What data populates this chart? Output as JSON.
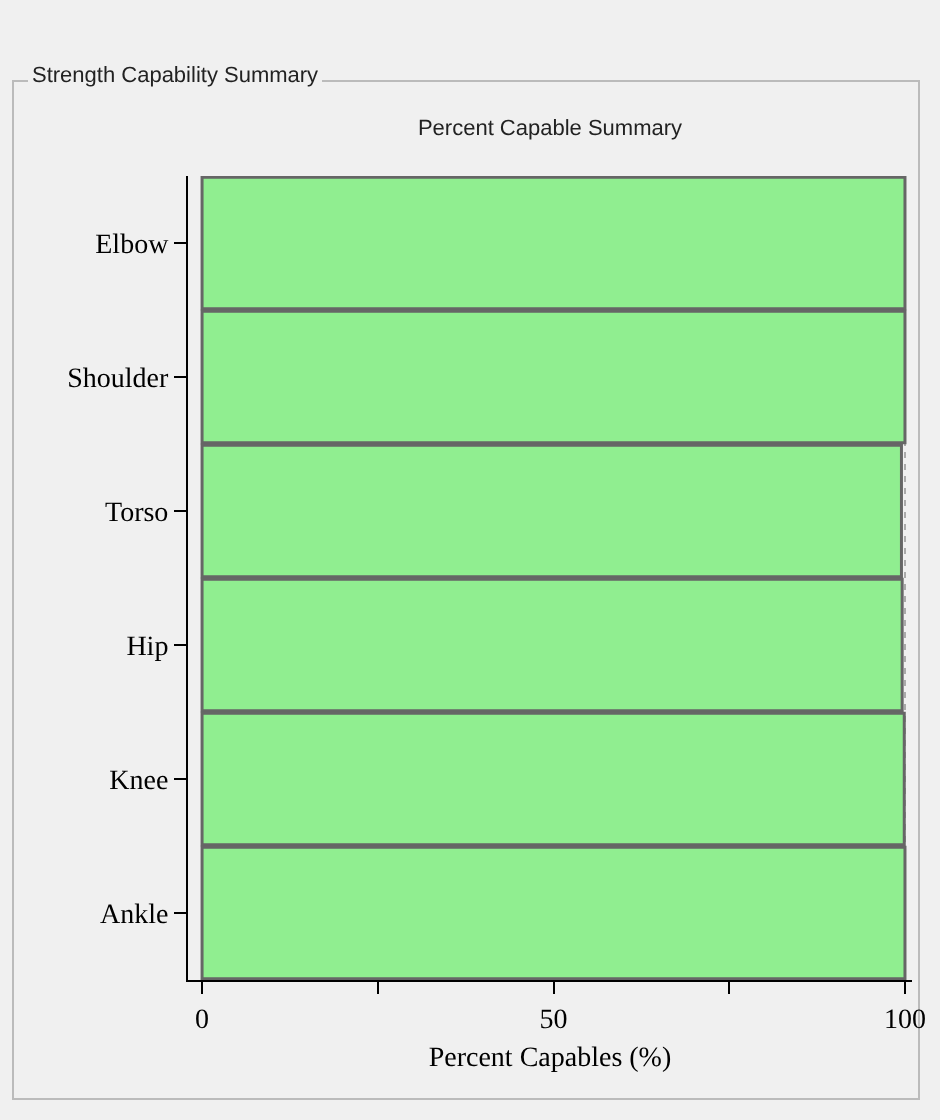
{
  "chart_data": {
    "type": "bar",
    "orientation": "horizontal",
    "title": "Strength Capability Summary",
    "subtitle": "Percent Capable Summary",
    "xlabel": "Percent Capables (%)",
    "categories": [
      "Elbow",
      "Shoulder",
      "Torso",
      "Hip",
      "Knee",
      "Ankle"
    ],
    "values": [
      100,
      100,
      99.5,
      99.6,
      99.9,
      100
    ],
    "color": "#90ee90",
    "xlim": [
      -2,
      101
    ],
    "xticks": [
      0,
      {
        "value": 25,
        "label": null
      },
      50,
      {
        "value": 75,
        "label": null
      },
      100
    ],
    "grid": "x"
  }
}
